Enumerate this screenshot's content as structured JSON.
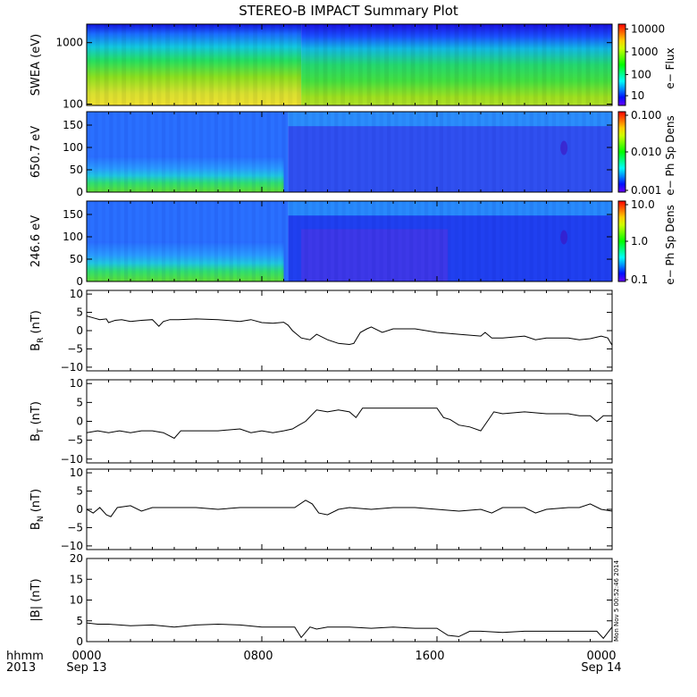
{
  "title": "STEREO-B IMPACT Summary Plot",
  "footer": {
    "row1": [
      "hhmm",
      "0000",
      "0800",
      "1600",
      "0000"
    ],
    "row2": [
      "2013",
      "Sep 13",
      "Sep 14"
    ]
  },
  "timestamp_text": "Mon Nov  5 00:52:46 2014",
  "colorbars": [
    {
      "label": "e− Flux",
      "ticks": [
        "10000",
        "1000",
        "100",
        "10"
      ]
    },
    {
      "label": "e− Ph Sp Dens",
      "ticks": [
        "0.100",
        "0.010",
        "0.001"
      ]
    },
    {
      "label": "e− Ph Sp Dens",
      "ticks": [
        "10.0",
        "1.0",
        "0.1"
      ]
    }
  ],
  "chart_data": [
    {
      "type": "heatmap",
      "ylabel": "SWEA (eV)",
      "yscale": "log",
      "ylim": [
        95,
        2000
      ],
      "yticks": [
        "1000",
        "100"
      ],
      "x_unit": "hour of Sep 13",
      "xlim": [
        0,
        24
      ],
      "colorbar": {
        "label": "e− Flux",
        "scale": "log",
        "range": [
          5,
          20000
        ]
      },
      "description_values": {
        "low_energy_flux_before_0940": 2500,
        "low_energy_flux_after_0940": 900,
        "high_energy_flux": 8
      }
    },
    {
      "type": "heatmap",
      "ylabel": "650.7 eV",
      "ylim": [
        0,
        180
      ],
      "yticks": [
        "150",
        "100",
        "50",
        "0"
      ],
      "xlim": [
        0,
        24
      ],
      "colorbar": {
        "label": "e− Ph Sp Dens",
        "scale": "log",
        "range": [
          0.001,
          0.1
        ]
      }
    },
    {
      "type": "heatmap",
      "ylabel": "246.6 eV",
      "ylim": [
        0,
        180
      ],
      "yticks": [
        "150",
        "100",
        "50",
        "0"
      ],
      "xlim": [
        0,
        24
      ],
      "colorbar": {
        "label": "e− Ph Sp Dens",
        "scale": "log",
        "range": [
          0.1,
          10.0
        ]
      }
    },
    {
      "type": "line",
      "ylabel": "B_R (nT)",
      "ylim": [
        -11,
        11
      ],
      "yticks": [
        "10",
        "5",
        "0",
        "−5",
        "−10"
      ],
      "xlim": [
        0,
        24
      ],
      "x": [
        0,
        0.3,
        0.6,
        0.9,
        1.0,
        1.3,
        1.6,
        2.0,
        2.5,
        3.0,
        3.3,
        3.5,
        3.8,
        4.2,
        5.0,
        6.0,
        7.0,
        7.5,
        8.0,
        8.5,
        9.0,
        9.2,
        9.4,
        9.6,
        9.8,
        10.2,
        10.5,
        11.0,
        11.5,
        12.0,
        12.2,
        12.5,
        12.8,
        13.0,
        13.5,
        14.0,
        15.0,
        16.0,
        17.0,
        18.0,
        18.2,
        18.5,
        19.0,
        20.0,
        20.5,
        21.0,
        22.0,
        22.5,
        23.0,
        23.5,
        23.8,
        24.0
      ],
      "y": [
        4,
        3.5,
        3,
        3.2,
        2.2,
        2.8,
        3,
        2.5,
        2.8,
        3,
        1.2,
        2.5,
        3,
        3,
        3.2,
        3,
        2.5,
        3,
        2.2,
        2,
        2.3,
        1.5,
        0,
        -1,
        -2,
        -2.5,
        -1,
        -2.5,
        -3.5,
        -3.8,
        -3.5,
        -0.5,
        0.5,
        1,
        -0.5,
        0.5,
        0.5,
        -0.5,
        -1,
        -1.5,
        -0.5,
        -2,
        -2,
        -1.5,
        -2.5,
        -2,
        -2,
        -2.5,
        -2.2,
        -1.5,
        -2,
        -4
      ]
    },
    {
      "type": "line",
      "ylabel": "B_T (nT)",
      "ylim": [
        -11,
        11
      ],
      "yticks": [
        "10",
        "5",
        "0",
        "−5",
        "−10"
      ],
      "xlim": [
        0,
        24
      ],
      "x": [
        0,
        0.5,
        1.0,
        1.5,
        2.0,
        2.5,
        3.0,
        3.5,
        4.0,
        4.3,
        4.5,
        5.0,
        6.0,
        7.0,
        7.5,
        8.0,
        8.5,
        9.0,
        9.4,
        9.7,
        10.0,
        10.5,
        11.0,
        11.5,
        12.0,
        12.3,
        12.6,
        13.0,
        14.0,
        15.0,
        16.0,
        16.3,
        16.6,
        17.0,
        17.5,
        18.0,
        18.3,
        18.6,
        19.0,
        20.0,
        21.0,
        22.0,
        22.5,
        23.0,
        23.3,
        23.6,
        24.0
      ],
      "y": [
        -3,
        -2.5,
        -3,
        -2.5,
        -3,
        -2.5,
        -2.5,
        -3,
        -4.5,
        -2.5,
        -2.5,
        -2.5,
        -2.5,
        -2,
        -3,
        -2.5,
        -3,
        -2.5,
        -2,
        -1,
        0,
        3,
        2.5,
        3,
        2.5,
        1,
        3.5,
        3.5,
        3.5,
        3.5,
        3.5,
        1,
        0.5,
        -1,
        -1.5,
        -2.5,
        0,
        2.5,
        2,
        2.5,
        2,
        2,
        1.5,
        1.5,
        0,
        1.5,
        1.5
      ]
    },
    {
      "type": "line",
      "ylabel": "B_N (nT)",
      "ylim": [
        -11,
        11
      ],
      "yticks": [
        "10",
        "5",
        "0",
        "−5",
        "−10"
      ],
      "xlim": [
        0,
        24
      ],
      "x": [
        0,
        0.3,
        0.6,
        0.9,
        1.1,
        1.4,
        2.0,
        2.5,
        3.0,
        4.0,
        5.0,
        6.0,
        7.0,
        8.0,
        9.0,
        9.5,
        10.0,
        10.3,
        10.6,
        11.0,
        11.5,
        12.0,
        13.0,
        14.0,
        15.0,
        16.0,
        17.0,
        18.0,
        18.5,
        19.0,
        20.0,
        20.5,
        21.0,
        22.0,
        22.5,
        23.0,
        23.5,
        24.0
      ],
      "y": [
        0,
        -1,
        0.5,
        -1.5,
        -2,
        0.5,
        1,
        -0.5,
        0.5,
        0.5,
        0.5,
        0,
        0.5,
        0.5,
        0.5,
        0.5,
        2.5,
        1.5,
        -1,
        -1.5,
        0,
        0.5,
        0,
        0.5,
        0.5,
        0,
        -0.5,
        0,
        -1,
        0.5,
        0.5,
        -1,
        0,
        0.5,
        0.5,
        1.5,
        0,
        -0.5
      ]
    },
    {
      "type": "line",
      "ylabel": "|B| (nT)",
      "ylim": [
        0,
        20
      ],
      "yticks": [
        "20",
        "15",
        "10",
        "5",
        "0"
      ],
      "xlim": [
        0,
        24
      ],
      "x": [
        0,
        0.5,
        1.0,
        2.0,
        3.0,
        4.0,
        5.0,
        6.0,
        7.0,
        8.0,
        9.0,
        9.5,
        9.8,
        10.2,
        10.5,
        11.0,
        12.0,
        13.0,
        14.0,
        15.0,
        16.0,
        16.5,
        17.0,
        17.5,
        18.0,
        19.0,
        20.0,
        21.0,
        22.0,
        23.0,
        23.3,
        23.6,
        24.0
      ],
      "y": [
        4.5,
        4.2,
        4.2,
        3.8,
        4,
        3.5,
        4,
        4.2,
        4,
        3.5,
        3.5,
        3.5,
        1,
        3.5,
        3,
        3.5,
        3.5,
        3.2,
        3.5,
        3.2,
        3.2,
        1.5,
        1.2,
        2.5,
        2.5,
        2.2,
        2.5,
        2.5,
        2.5,
        2.5,
        2.5,
        0.8,
        3.5
      ]
    }
  ]
}
